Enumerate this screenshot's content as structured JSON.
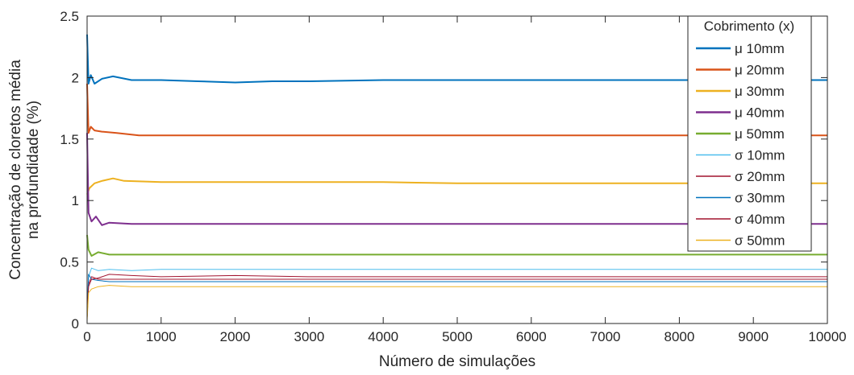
{
  "chart_data": {
    "type": "line",
    "title": "",
    "xlabel": "Número de simulações",
    "ylabel_line1": "Concentração de cloretos média",
    "ylabel_line2": "na profundidade (%)",
    "xlim": [
      0,
      10000
    ],
    "ylim": [
      0,
      2.5
    ],
    "xticks": [
      0,
      1000,
      2000,
      3000,
      4000,
      5000,
      6000,
      7000,
      8000,
      9000,
      10000
    ],
    "xtick_labels": [
      "0",
      "1000",
      "2000",
      "3000",
      "4000",
      "5000",
      "6000",
      "7000",
      "8000",
      "9000",
      "10000"
    ],
    "yticks": [
      0,
      0.5,
      1,
      1.5,
      2,
      2.5
    ],
    "ytick_labels": [
      "0",
      "0.5",
      "1",
      "1.5",
      "2",
      "2.5"
    ],
    "grid": false,
    "legend_title": "Cobrimento (x)",
    "legend_position": "top-right",
    "series": [
      {
        "name": "μ 10mm",
        "color": "#0072BD",
        "width": 2,
        "points": [
          [
            0,
            2.35
          ],
          [
            20,
            1.95
          ],
          [
            50,
            2.02
          ],
          [
            100,
            1.95
          ],
          [
            200,
            1.99
          ],
          [
            350,
            2.01
          ],
          [
            600,
            1.98
          ],
          [
            1000,
            1.98
          ],
          [
            1500,
            1.97
          ],
          [
            2000,
            1.96
          ],
          [
            2500,
            1.97
          ],
          [
            3000,
            1.97
          ],
          [
            4000,
            1.98
          ],
          [
            5000,
            1.98
          ],
          [
            6000,
            1.98
          ],
          [
            7000,
            1.98
          ],
          [
            8000,
            1.98
          ],
          [
            9000,
            1.98
          ],
          [
            10000,
            1.98
          ]
        ]
      },
      {
        "name": "μ 20mm",
        "color": "#D95319",
        "width": 2,
        "points": [
          [
            0,
            1.95
          ],
          [
            20,
            1.55
          ],
          [
            50,
            1.6
          ],
          [
            100,
            1.57
          ],
          [
            200,
            1.56
          ],
          [
            400,
            1.55
          ],
          [
            700,
            1.53
          ],
          [
            1000,
            1.53
          ],
          [
            2000,
            1.53
          ],
          [
            3000,
            1.53
          ],
          [
            4000,
            1.53
          ],
          [
            5000,
            1.53
          ],
          [
            6000,
            1.53
          ],
          [
            7000,
            1.53
          ],
          [
            8000,
            1.53
          ],
          [
            9000,
            1.53
          ],
          [
            10000,
            1.53
          ]
        ]
      },
      {
        "name": "μ 30mm",
        "color": "#EDB120",
        "width": 2,
        "points": [
          [
            0,
            1.05
          ],
          [
            30,
            1.1
          ],
          [
            100,
            1.14
          ],
          [
            200,
            1.16
          ],
          [
            350,
            1.18
          ],
          [
            500,
            1.16
          ],
          [
            1000,
            1.15
          ],
          [
            2000,
            1.15
          ],
          [
            3000,
            1.15
          ],
          [
            4000,
            1.15
          ],
          [
            5000,
            1.14
          ],
          [
            6000,
            1.14
          ],
          [
            7000,
            1.14
          ],
          [
            8000,
            1.14
          ],
          [
            9000,
            1.14
          ],
          [
            10000,
            1.14
          ]
        ]
      },
      {
        "name": "μ 40mm",
        "color": "#7E2F8E",
        "width": 2,
        "points": [
          [
            0,
            1.55
          ],
          [
            20,
            0.9
          ],
          [
            60,
            0.83
          ],
          [
            120,
            0.87
          ],
          [
            200,
            0.8
          ],
          [
            300,
            0.82
          ],
          [
            600,
            0.81
          ],
          [
            1000,
            0.81
          ],
          [
            2000,
            0.81
          ],
          [
            3000,
            0.81
          ],
          [
            4000,
            0.81
          ],
          [
            5000,
            0.81
          ],
          [
            6000,
            0.81
          ],
          [
            7000,
            0.81
          ],
          [
            8000,
            0.81
          ],
          [
            9000,
            0.81
          ],
          [
            10000,
            0.81
          ]
        ]
      },
      {
        "name": "μ 50mm",
        "color": "#77AC30",
        "width": 2,
        "points": [
          [
            0,
            0.72
          ],
          [
            20,
            0.6
          ],
          [
            60,
            0.55
          ],
          [
            150,
            0.58
          ],
          [
            300,
            0.56
          ],
          [
            600,
            0.56
          ],
          [
            1000,
            0.56
          ],
          [
            2000,
            0.56
          ],
          [
            3000,
            0.56
          ],
          [
            4000,
            0.56
          ],
          [
            5000,
            0.56
          ],
          [
            6000,
            0.56
          ],
          [
            7000,
            0.56
          ],
          [
            8000,
            0.56
          ],
          [
            9000,
            0.56
          ],
          [
            10000,
            0.56
          ]
        ]
      },
      {
        "name": "σ 10mm",
        "color": "#4DBEEE",
        "width": 1,
        "points": [
          [
            0,
            0.05
          ],
          [
            20,
            0.38
          ],
          [
            60,
            0.45
          ],
          [
            150,
            0.43
          ],
          [
            300,
            0.44
          ],
          [
            600,
            0.43
          ],
          [
            1000,
            0.44
          ],
          [
            2000,
            0.44
          ],
          [
            3000,
            0.44
          ],
          [
            4000,
            0.44
          ],
          [
            5000,
            0.44
          ],
          [
            6000,
            0.44
          ],
          [
            7000,
            0.44
          ],
          [
            8000,
            0.44
          ],
          [
            9000,
            0.44
          ],
          [
            10000,
            0.44
          ]
        ]
      },
      {
        "name": "σ 20mm",
        "color": "#A2142F",
        "width": 1,
        "points": [
          [
            0,
            0.05
          ],
          [
            20,
            0.32
          ],
          [
            60,
            0.38
          ],
          [
            150,
            0.36
          ],
          [
            300,
            0.36
          ],
          [
            600,
            0.36
          ],
          [
            1000,
            0.36
          ],
          [
            2000,
            0.36
          ],
          [
            3000,
            0.36
          ],
          [
            4000,
            0.36
          ],
          [
            5000,
            0.36
          ],
          [
            6000,
            0.36
          ],
          [
            7000,
            0.36
          ],
          [
            8000,
            0.36
          ],
          [
            9000,
            0.36
          ],
          [
            10000,
            0.36
          ]
        ]
      },
      {
        "name": "σ 30mm",
        "color": "#0072BD",
        "width": 1,
        "points": [
          [
            0,
            0.05
          ],
          [
            20,
            0.4
          ],
          [
            60,
            0.36
          ],
          [
            150,
            0.35
          ],
          [
            300,
            0.34
          ],
          [
            600,
            0.34
          ],
          [
            1000,
            0.34
          ],
          [
            2000,
            0.34
          ],
          [
            3000,
            0.34
          ],
          [
            4000,
            0.34
          ],
          [
            5000,
            0.34
          ],
          [
            6000,
            0.34
          ],
          [
            7000,
            0.34
          ],
          [
            8000,
            0.34
          ],
          [
            9000,
            0.34
          ],
          [
            10000,
            0.34
          ]
        ]
      },
      {
        "name": "σ 40mm",
        "color": "#A2142F",
        "width": 1,
        "points": [
          [
            0,
            0.05
          ],
          [
            20,
            0.3
          ],
          [
            60,
            0.36
          ],
          [
            150,
            0.37
          ],
          [
            300,
            0.4
          ],
          [
            600,
            0.39
          ],
          [
            1000,
            0.38
          ],
          [
            2000,
            0.39
          ],
          [
            3000,
            0.38
          ],
          [
            4000,
            0.38
          ],
          [
            5000,
            0.38
          ],
          [
            6000,
            0.38
          ],
          [
            7000,
            0.38
          ],
          [
            8000,
            0.38
          ],
          [
            9000,
            0.38
          ],
          [
            10000,
            0.38
          ]
        ]
      },
      {
        "name": "σ 50mm",
        "color": "#EDB120",
        "width": 1,
        "points": [
          [
            0,
            0.02
          ],
          [
            20,
            0.25
          ],
          [
            60,
            0.28
          ],
          [
            150,
            0.3
          ],
          [
            300,
            0.31
          ],
          [
            600,
            0.3
          ],
          [
            1000,
            0.3
          ],
          [
            2000,
            0.3
          ],
          [
            3000,
            0.3
          ],
          [
            4000,
            0.3
          ],
          [
            5000,
            0.3
          ],
          [
            6000,
            0.3
          ],
          [
            7000,
            0.3
          ],
          [
            8000,
            0.3
          ],
          [
            9000,
            0.3
          ],
          [
            10000,
            0.3
          ]
        ]
      }
    ]
  }
}
